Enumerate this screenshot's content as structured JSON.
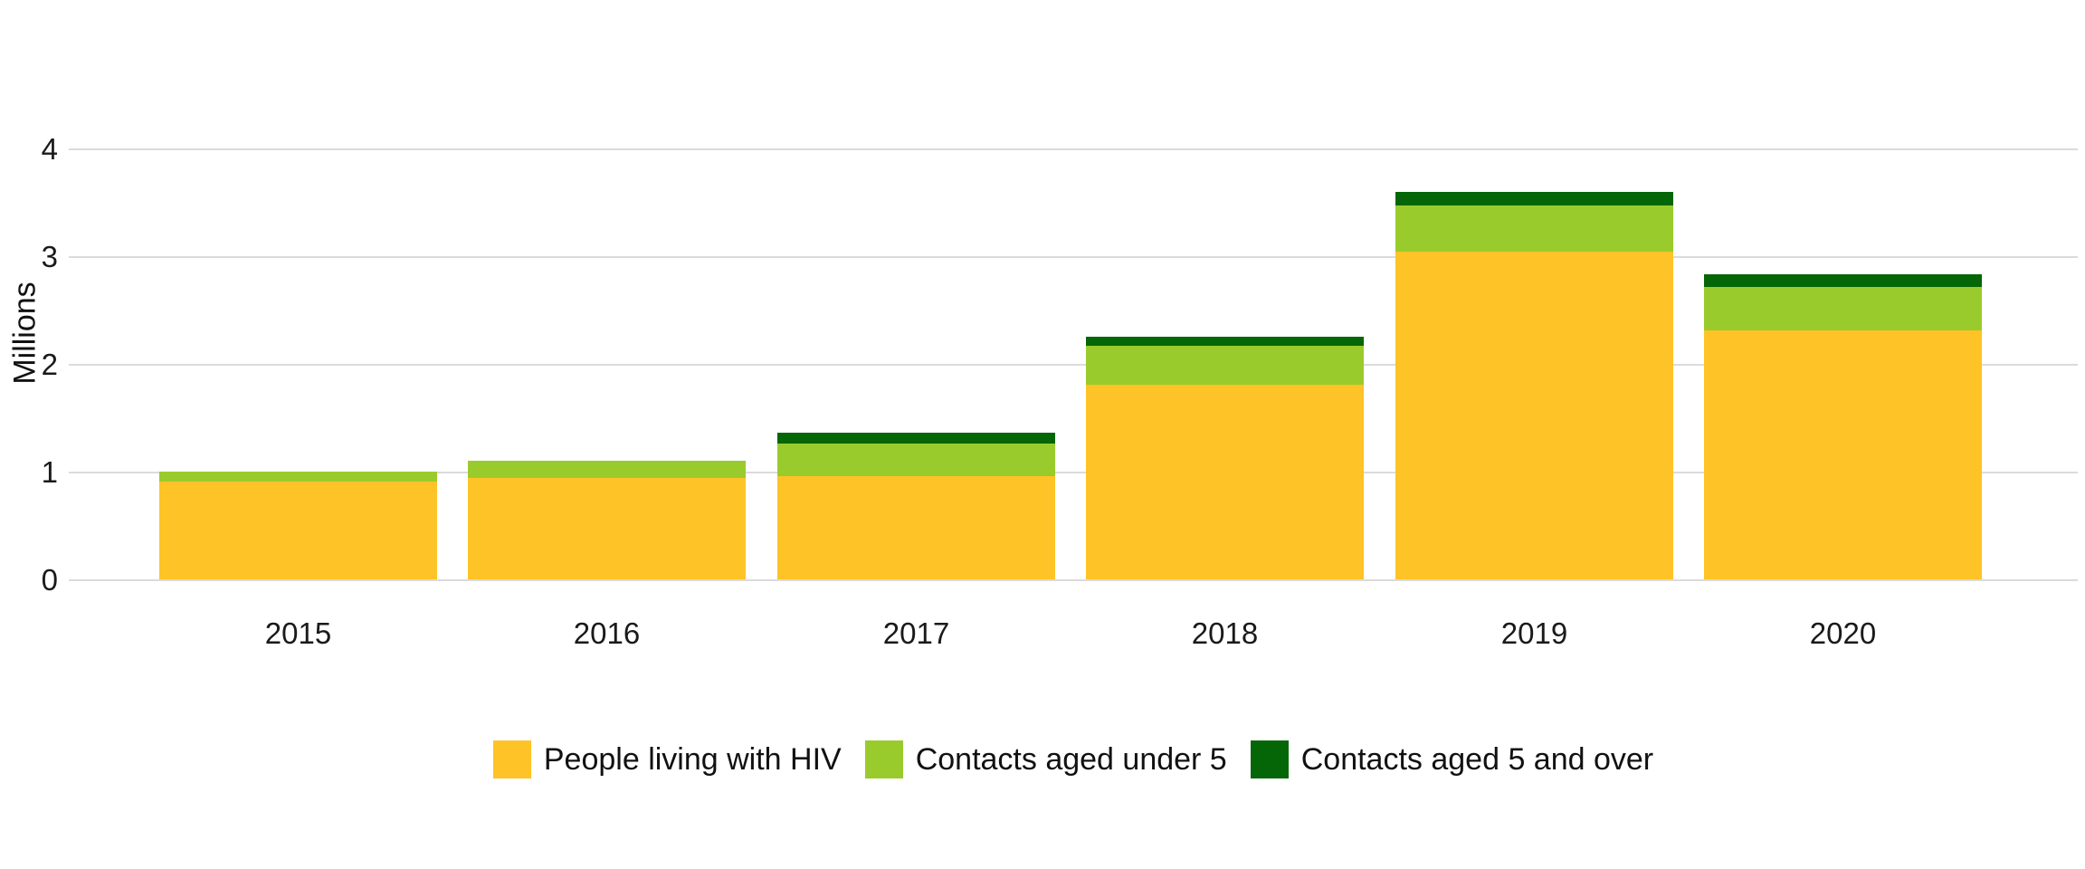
{
  "chart_data": {
    "type": "bar",
    "stacked": true,
    "title": "",
    "xlabel": "",
    "ylabel": "Millions",
    "ylim": [
      0,
      4
    ],
    "yticks": [
      0,
      1,
      2,
      3,
      4
    ],
    "grid": true,
    "legend_position": "bottom",
    "categories": [
      "2015",
      "2016",
      "2017",
      "2018",
      "2019",
      "2020"
    ],
    "series": [
      {
        "name": "People living with HIV",
        "color": "#FEC326",
        "values": [
          0.91,
          0.94,
          0.96,
          1.81,
          3.04,
          2.31
        ]
      },
      {
        "name": "Contacts aged under 5",
        "color": "#9ACB2C",
        "values": [
          0.09,
          0.16,
          0.3,
          0.36,
          0.43,
          0.4
        ]
      },
      {
        "name": "Contacts aged 5 and over",
        "color": "#056607",
        "values": [
          0,
          0,
          0.1,
          0.08,
          0.13,
          0.12
        ]
      }
    ],
    "totals": [
      1.0,
      1.1,
      1.36,
      2.25,
      3.6,
      2.83
    ]
  },
  "colors": {
    "gridline": "#dbdbdb",
    "text": "#1a1a1a",
    "background": "#ffffff"
  }
}
